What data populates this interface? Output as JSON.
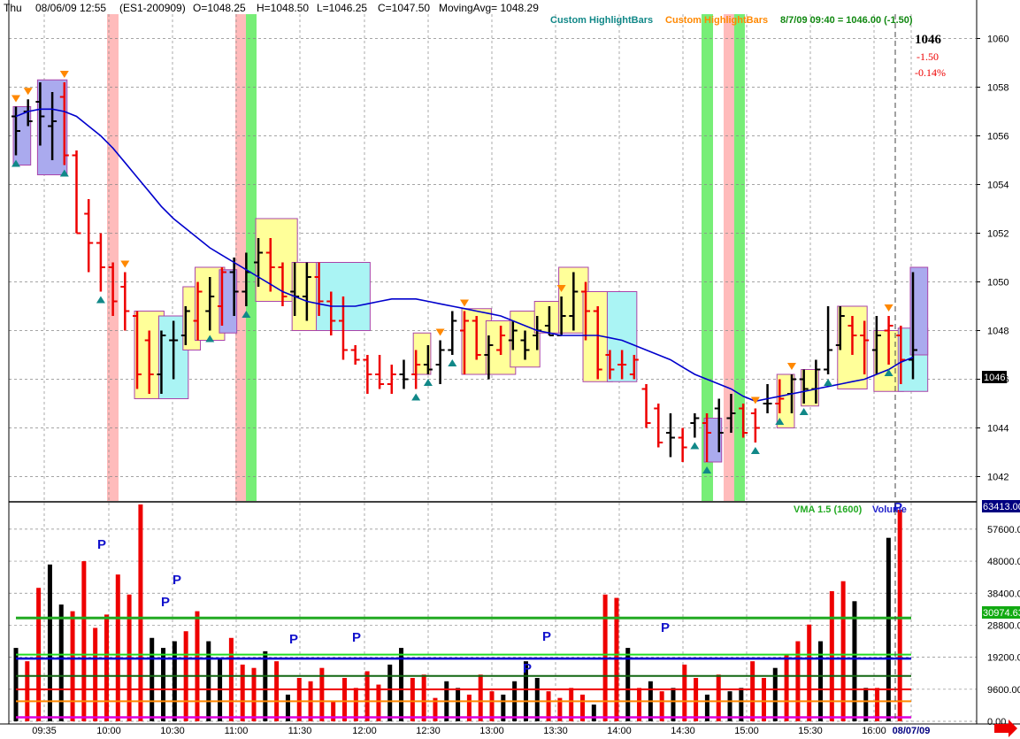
{
  "header": {
    "day": "Thu",
    "datetime": "08/06/09 12:55",
    "symbol": "(ES1-200909)",
    "open": "O=1048.25",
    "high": "H=1048.50",
    "low": "L=1046.25",
    "close": "C=1047.50",
    "moving_avg": "MovingAvg= 1048.29",
    "legend_highlight_1": "Custom HighlightBars",
    "legend_highlight_2": "Custom HighlightBars",
    "legend_status": "8/7/09 09:40 = 1046.00 (-1.50)"
  },
  "quote": {
    "last": "1046",
    "change": "-1.50",
    "change_pct": "-0.14%"
  },
  "price_label": "1046",
  "volume_panel": {
    "vma_label": "VMA 1.5 (1600)",
    "volume_label": "Volume",
    "last_volume_label": "63413.00",
    "vma_value_label": "30974.63"
  },
  "colors": {
    "up": "#000000",
    "down": "#ee0000",
    "ma": "#0000cc",
    "highlight_yellow": "#ffff99",
    "highlight_cyan": "#aaf4f4",
    "highlight_blue": "#aaaaee",
    "band_pink": "#ffbbbb",
    "band_green": "#77ee77",
    "tri_down": "#ff8800",
    "tri_up": "#118888"
  },
  "chart_data": [
    {
      "type": "ohlc",
      "title": "",
      "x_ticks": [
        "09:35",
        "10:00",
        "10:30",
        "11:00",
        "11:30",
        "12:00",
        "12:30",
        "13:00",
        "13:30",
        "14:00",
        "14:30",
        "15:00",
        "15:30",
        "16:00",
        "08/07/09"
      ],
      "y_ticks": [
        1042,
        1044,
        1046,
        1048,
        1050,
        1052,
        1054,
        1056,
        1058,
        1060
      ],
      "ylim": [
        1041,
        1061
      ],
      "series": [
        {
          "name": "MovingAvg",
          "values": [
            1056.8,
            1057.0,
            1057.1,
            1057.1,
            1057.0,
            1056.8,
            1056.4,
            1056.0,
            1055.5,
            1054.9,
            1054.3,
            1053.7,
            1053.1,
            1052.6,
            1052.2,
            1051.8,
            1051.4,
            1051.1,
            1050.8,
            1050.5,
            1050.2,
            1049.9,
            1049.6,
            1049.4,
            1049.2,
            1049.1,
            1049.0,
            1049.0,
            1049.0,
            1049.1,
            1049.2,
            1049.3,
            1049.3,
            1049.3,
            1049.2,
            1049.1,
            1049.0,
            1048.9,
            1048.8,
            1048.7,
            1048.6,
            1048.4,
            1048.2,
            1048.0,
            1047.9,
            1047.8,
            1047.8,
            1047.8,
            1047.8,
            1047.7,
            1047.6,
            1047.4,
            1047.2,
            1047.0,
            1046.8,
            1046.5,
            1046.2,
            1046.0,
            1045.8,
            1045.6,
            1045.3,
            1045.1,
            1045.2,
            1045.3,
            1045.4,
            1045.5,
            1045.6,
            1045.7,
            1045.8,
            1045.9,
            1046.0,
            1046.2,
            1046.4,
            1046.7,
            1046.9
          ]
        }
      ]
    },
    {
      "type": "bar",
      "title": "",
      "y_ticks": [
        0,
        9600,
        19200,
        28800,
        38400,
        48000,
        57600
      ],
      "ylim": [
        0,
        65000
      ],
      "series": [
        {
          "name": "VMA 1.5 (1600)",
          "values": []
        },
        {
          "name": "Volume",
          "values": []
        }
      ]
    }
  ]
}
